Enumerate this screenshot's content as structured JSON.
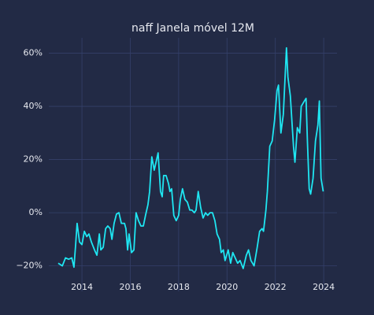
{
  "chart_data": {
    "type": "line",
    "title": "naff Janela móvel 12M",
    "x": [
      2013.02,
      2013.19,
      2013.32,
      2013.45,
      2013.58,
      2013.67,
      2013.74,
      2013.8,
      2013.9,
      2014.0,
      2014.1,
      2014.2,
      2014.29,
      2014.39,
      2014.52,
      2014.62,
      2014.72,
      2014.78,
      2014.88,
      2014.98,
      2015.07,
      2015.17,
      2015.24,
      2015.33,
      2015.43,
      2015.53,
      2015.63,
      2015.76,
      2015.82,
      2015.89,
      2015.95,
      2016.05,
      2016.15,
      2016.24,
      2016.34,
      2016.44,
      2016.54,
      2016.63,
      2016.73,
      2016.8,
      2016.89,
      2016.99,
      2017.09,
      2017.15,
      2017.25,
      2017.32,
      2017.38,
      2017.48,
      2017.58,
      2017.64,
      2017.71,
      2017.8,
      2017.9,
      2018.0,
      2018.07,
      2018.16,
      2018.26,
      2018.36,
      2018.46,
      2018.55,
      2018.65,
      2018.72,
      2018.81,
      2018.91,
      2019.01,
      2019.11,
      2019.2,
      2019.3,
      2019.4,
      2019.5,
      2019.59,
      2019.69,
      2019.76,
      2019.85,
      2019.92,
      2020.05,
      2020.15,
      2020.24,
      2020.34,
      2020.44,
      2020.54,
      2020.67,
      2020.8,
      2020.89,
      2020.99,
      2021.12,
      2021.25,
      2021.35,
      2021.45,
      2021.51,
      2021.61,
      2021.67,
      2021.77,
      2021.87,
      2021.97,
      2022.07,
      2022.13,
      2022.23,
      2022.33,
      2022.46,
      2022.52,
      2022.62,
      2022.75,
      2022.81,
      2022.91,
      2023.01,
      2023.07,
      2023.2,
      2023.27,
      2023.33,
      2023.4,
      2023.46,
      2023.56,
      2023.66,
      2023.76,
      2023.82,
      2023.89,
      2023.98
    ],
    "values": [
      -19,
      -20,
      -17,
      -17.5,
      -17,
      -20.5,
      -12,
      -4,
      -11,
      -12,
      -7,
      -9,
      -8,
      -11,
      -14,
      -16,
      -8,
      -14,
      -13,
      -6,
      -5,
      -6,
      -10,
      -4,
      -0.5,
      0,
      -4,
      -4,
      -6,
      -14,
      -8,
      -15,
      -14,
      0,
      -3,
      -5,
      -5,
      -1,
      3,
      8,
      21,
      16,
      20,
      22.5,
      8,
      6,
      14,
      14,
      11,
      8,
      9,
      -1,
      -3,
      -1,
      5,
      9,
      5,
      4,
      1,
      1,
      0,
      1,
      8,
      2,
      -2,
      0,
      -1,
      0,
      0,
      -3,
      -8,
      -10,
      -15,
      -14,
      -18,
      -14,
      -19,
      -15,
      -17,
      -19,
      -18,
      -21,
      -16,
      -14,
      -18,
      -20,
      -13,
      -7,
      -6,
      -7,
      1,
      8,
      25,
      27,
      35,
      46,
      48,
      30,
      37,
      62,
      51,
      44,
      25,
      19,
      32,
      30,
      40,
      42,
      43,
      26,
      9,
      7,
      13,
      27,
      33,
      42,
      13,
      8
    ],
    "color": "#1fe6f2",
    "xlim": [
      2012.63,
      2024.55
    ],
    "ylim": [
      -29.6,
      65.8
    ],
    "xticks": [
      2014,
      2016,
      2018,
      2020,
      2022,
      2024
    ],
    "yticks": [
      {
        "value": -20,
        "label": "−20%"
      },
      {
        "value": 0,
        "label": "0%"
      },
      {
        "value": 20,
        "label": "20%"
      },
      {
        "value": 40,
        "label": "40%"
      },
      {
        "value": 60,
        "label": "60%"
      }
    ],
    "grid": true
  }
}
